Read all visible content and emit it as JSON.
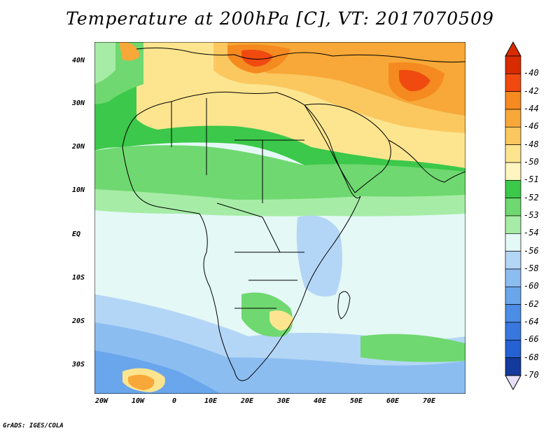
{
  "title": "Temperature at 200hPa [C], VT: 2017070509",
  "credit": "GrADS: IGES/COLA",
  "map": {
    "projection": "lat-lon",
    "extent": {
      "lon": [
        -22,
        80
      ],
      "lat": [
        -37,
        45
      ]
    },
    "lat_ticks": [
      "40N",
      "30N",
      "20N",
      "10N",
      "EQ",
      "10S",
      "20S",
      "30S"
    ],
    "lon_ticks": [
      "20W",
      "10W",
      "0",
      "10E",
      "20E",
      "30E",
      "40E",
      "50E",
      "60E",
      "70E"
    ],
    "field_palette": {
      "-40": "#d92b00",
      "-42": "#f04a10",
      "-44": "#f58a20",
      "-46": "#f7a838",
      "-48": "#fbc860",
      "-50": "#fde590",
      "-51": "#fff5c0",
      "-52": "#3cc84a",
      "-53": "#6fd870",
      "-54": "#a6eca6",
      "-56": "#e4f8f6",
      "-58": "#b4d6f6",
      "-60": "#8cbdf1",
      "-62": "#69a6ec",
      "-64": "#4c8de5",
      "-66": "#3878de",
      "-68": "#2561d2",
      "-70": "#133a9c"
    }
  },
  "colorbar": {
    "labels": [
      "-40",
      "-42",
      "-44",
      "-46",
      "-48",
      "-50",
      "-51",
      "-52",
      "-53",
      "-54",
      "-56",
      "-58",
      "-60",
      "-62",
      "-64",
      "-66",
      "-68",
      "-70"
    ],
    "colors": [
      "#d92b00",
      "#f04a10",
      "#f58a20",
      "#f7a838",
      "#fbc860",
      "#fde590",
      "#fff5c0",
      "#3cc84a",
      "#6fd870",
      "#a6eca6",
      "#e4f8f6",
      "#b4d6f6",
      "#8cbdf1",
      "#69a6ec",
      "#4c8de5",
      "#3878de",
      "#2561d2",
      "#133a9c"
    ]
  }
}
